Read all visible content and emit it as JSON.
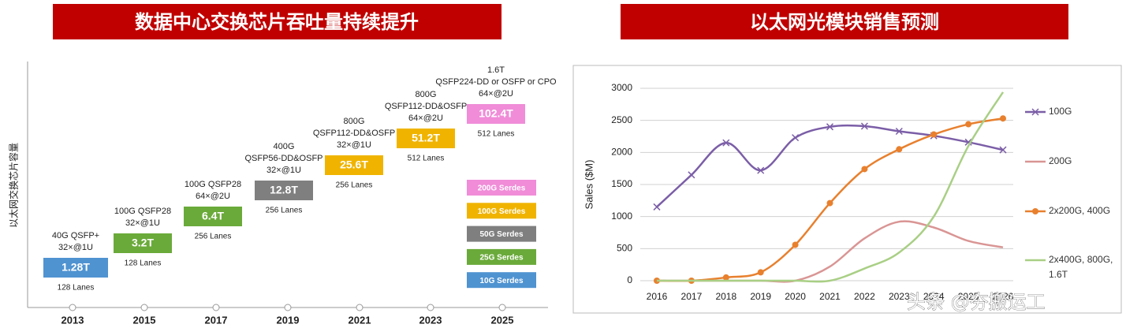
{
  "left_panel": {
    "title": "数据中心交换芯片吞吐量持续提升",
    "y_axis_label": "以太网交换芯片容量",
    "years": [
      "2013",
      "2015",
      "2017",
      "2019",
      "2021",
      "2023",
      "2025"
    ],
    "chips": [
      {
        "lines": [
          "40G QSFP+",
          "32×@1U"
        ],
        "capacity": "1.28T",
        "lanes": "128 Lanes"
      },
      {
        "lines": [
          "100G QSFP28",
          "32×@1U"
        ],
        "capacity": "3.2T",
        "lanes": "128 Lanes"
      },
      {
        "lines": [
          "100G QSFP28",
          "64×@2U"
        ],
        "capacity": "6.4T",
        "lanes": "256 Lanes"
      },
      {
        "lines": [
          "400G",
          "QSFP56-DD&OSFP",
          "32×@1U"
        ],
        "capacity": "12.8T",
        "lanes": "256 Lanes"
      },
      {
        "lines": [
          "800G",
          "QSFP112-DD&OSFP",
          "32×@1U"
        ],
        "capacity": "25.6T",
        "lanes": "256 Lanes"
      },
      {
        "lines": [
          "800G",
          "QSFP112-DD&OSFP",
          "64×@2U"
        ],
        "capacity": "51.2T",
        "lanes": "512 Lanes"
      },
      {
        "lines": [
          "1.6T",
          "QSFP224-DD or OSFP or CPO",
          "64×@2U"
        ],
        "capacity": "102.4T",
        "lanes": "512 Lanes"
      }
    ],
    "serdes": [
      "200G Serdes",
      "100G Serdes",
      "50G Serdes",
      "25G Serdes",
      "10G Serdes"
    ]
  },
  "right_panel_title": "以太网光模块销售预测",
  "watermark": "头条 @夯搬运工",
  "chart_data": {
    "type": "line",
    "y_label": "Sales ($M)",
    "categories": [
      "2016",
      "2017",
      "2018",
      "2019",
      "2020",
      "2021",
      "2022",
      "2023",
      "2024",
      "2025",
      "2026"
    ],
    "series": [
      {
        "name": "100G",
        "color": "#7b5ea7",
        "marker": "x",
        "values": [
          1150,
          1650,
          2150,
          1720,
          2230,
          2400,
          2410,
          2330,
          2260,
          2160,
          2040
        ]
      },
      {
        "name": "200G",
        "color": "#d99594",
        "values": [
          0,
          0,
          0,
          0,
          0,
          220,
          660,
          920,
          830,
          620,
          520
        ]
      },
      {
        "name": "2x200G, 400G",
        "color": "#e8802e",
        "marker": "circle",
        "values": [
          0,
          0,
          50,
          130,
          560,
          1210,
          1740,
          2050,
          2280,
          2440,
          2530
        ]
      },
      {
        "name": "2x400G, 800G, 1.6T",
        "color": "#a9cf85",
        "values": [
          0,
          0,
          0,
          0,
          0,
          0,
          190,
          440,
          1000,
          2100,
          2940
        ]
      }
    ],
    "ylim": [
      0,
      3000
    ],
    "yticks": [
      0,
      500,
      1000,
      1500,
      2000,
      2500,
      3000
    ],
    "grid": true
  }
}
